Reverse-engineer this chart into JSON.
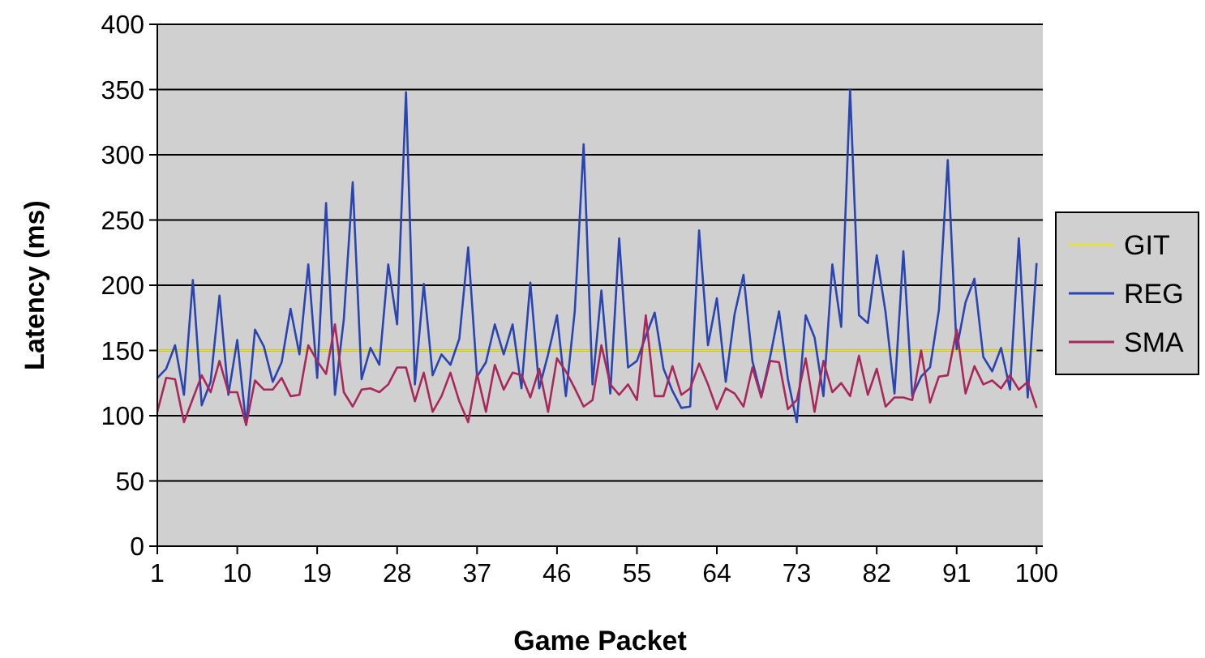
{
  "chart_data": {
    "type": "line",
    "xlabel": "Game Packet",
    "ylabel": "Latency (ms)",
    "x": [
      1,
      2,
      3,
      4,
      5,
      6,
      7,
      8,
      9,
      10,
      11,
      12,
      13,
      14,
      15,
      16,
      17,
      18,
      19,
      20,
      21,
      22,
      23,
      24,
      25,
      26,
      27,
      28,
      29,
      30,
      31,
      32,
      33,
      34,
      35,
      36,
      37,
      38,
      39,
      40,
      41,
      42,
      43,
      44,
      45,
      46,
      47,
      48,
      49,
      50,
      51,
      52,
      53,
      54,
      55,
      56,
      57,
      58,
      59,
      60,
      61,
      62,
      63,
      64,
      65,
      66,
      67,
      68,
      69,
      70,
      71,
      72,
      73,
      74,
      75,
      76,
      77,
      78,
      79,
      80,
      81,
      82,
      83,
      84,
      85,
      86,
      87,
      88,
      89,
      90,
      91,
      92,
      93,
      94,
      95,
      96,
      97,
      98,
      99,
      100
    ],
    "series": [
      {
        "name": "GIT",
        "color": "#e6e03c",
        "values": [
          150,
          150,
          150,
          150,
          150,
          150,
          150,
          150,
          150,
          150,
          150,
          150,
          150,
          150,
          150,
          150,
          150,
          150,
          150,
          150,
          150,
          150,
          150,
          150,
          150,
          150,
          150,
          150,
          150,
          150,
          150,
          150,
          150,
          150,
          150,
          150,
          150,
          150,
          150,
          150,
          150,
          150,
          150,
          150,
          150,
          150,
          150,
          150,
          150,
          150,
          150,
          150,
          150,
          150,
          150,
          150,
          150,
          150,
          150,
          150,
          150,
          150,
          150,
          150,
          150,
          150,
          150,
          150,
          150,
          150,
          150,
          150,
          150,
          150,
          150,
          150,
          150,
          150,
          150,
          150,
          150,
          150,
          150,
          150,
          150,
          150,
          150,
          150,
          150,
          150,
          150,
          150,
          150,
          150,
          150,
          150,
          150,
          150,
          150,
          150
        ]
      },
      {
        "name": "REG",
        "color": "#2a44b0",
        "values": [
          129,
          136,
          154,
          116,
          204,
          108,
          126,
          192,
          116,
          158,
          93,
          166,
          153,
          126,
          141,
          182,
          147,
          216,
          129,
          263,
          116,
          174,
          279,
          128,
          152,
          139,
          216,
          170,
          348,
          124,
          201,
          131,
          147,
          139,
          159,
          229,
          130,
          141,
          170,
          147,
          170,
          121,
          202,
          121,
          147,
          177,
          115,
          180,
          308,
          124,
          196,
          117,
          236,
          137,
          142,
          161,
          179,
          136,
          119,
          106,
          107,
          242,
          154,
          190,
          126,
          178,
          208,
          142,
          115,
          145,
          180,
          128,
          95,
          177,
          160,
          115,
          216,
          168,
          350,
          177,
          171,
          223,
          179,
          117,
          226,
          115,
          130,
          137,
          181,
          296,
          151,
          187,
          205,
          145,
          134,
          152,
          120,
          236,
          114,
          217
        ]
      },
      {
        "name": "SMA",
        "color": "#a8285c",
        "values": [
          103,
          129,
          128,
          95,
          113,
          131,
          118,
          142,
          118,
          118,
          93,
          127,
          120,
          120,
          129,
          115,
          116,
          154,
          142,
          132,
          170,
          118,
          107,
          120,
          121,
          118,
          124,
          137,
          137,
          111,
          133,
          103,
          115,
          133,
          111,
          95,
          132,
          103,
          139,
          120,
          133,
          131,
          114,
          136,
          103,
          144,
          134,
          121,
          107,
          112,
          154,
          124,
          116,
          124,
          112,
          177,
          115,
          115,
          138,
          116,
          121,
          140,
          124,
          105,
          121,
          117,
          107,
          137,
          114,
          142,
          141,
          105,
          112,
          144,
          103,
          142,
          118,
          125,
          115,
          146,
          116,
          136,
          107,
          114,
          114,
          112,
          150,
          110,
          130,
          131,
          166,
          117,
          138,
          124,
          127,
          121,
          131,
          120,
          126,
          106
        ]
      }
    ],
    "xlim": [
      1,
      100.7
    ],
    "xticks": [
      1,
      10,
      19,
      28,
      37,
      46,
      55,
      64,
      73,
      82,
      91,
      100
    ],
    "ylim": [
      0,
      400
    ],
    "yticks": [
      0,
      50,
      100,
      150,
      200,
      250,
      300,
      350,
      400
    ],
    "grid": "y",
    "legend": "right",
    "marker": "none",
    "line_style": "solid"
  }
}
